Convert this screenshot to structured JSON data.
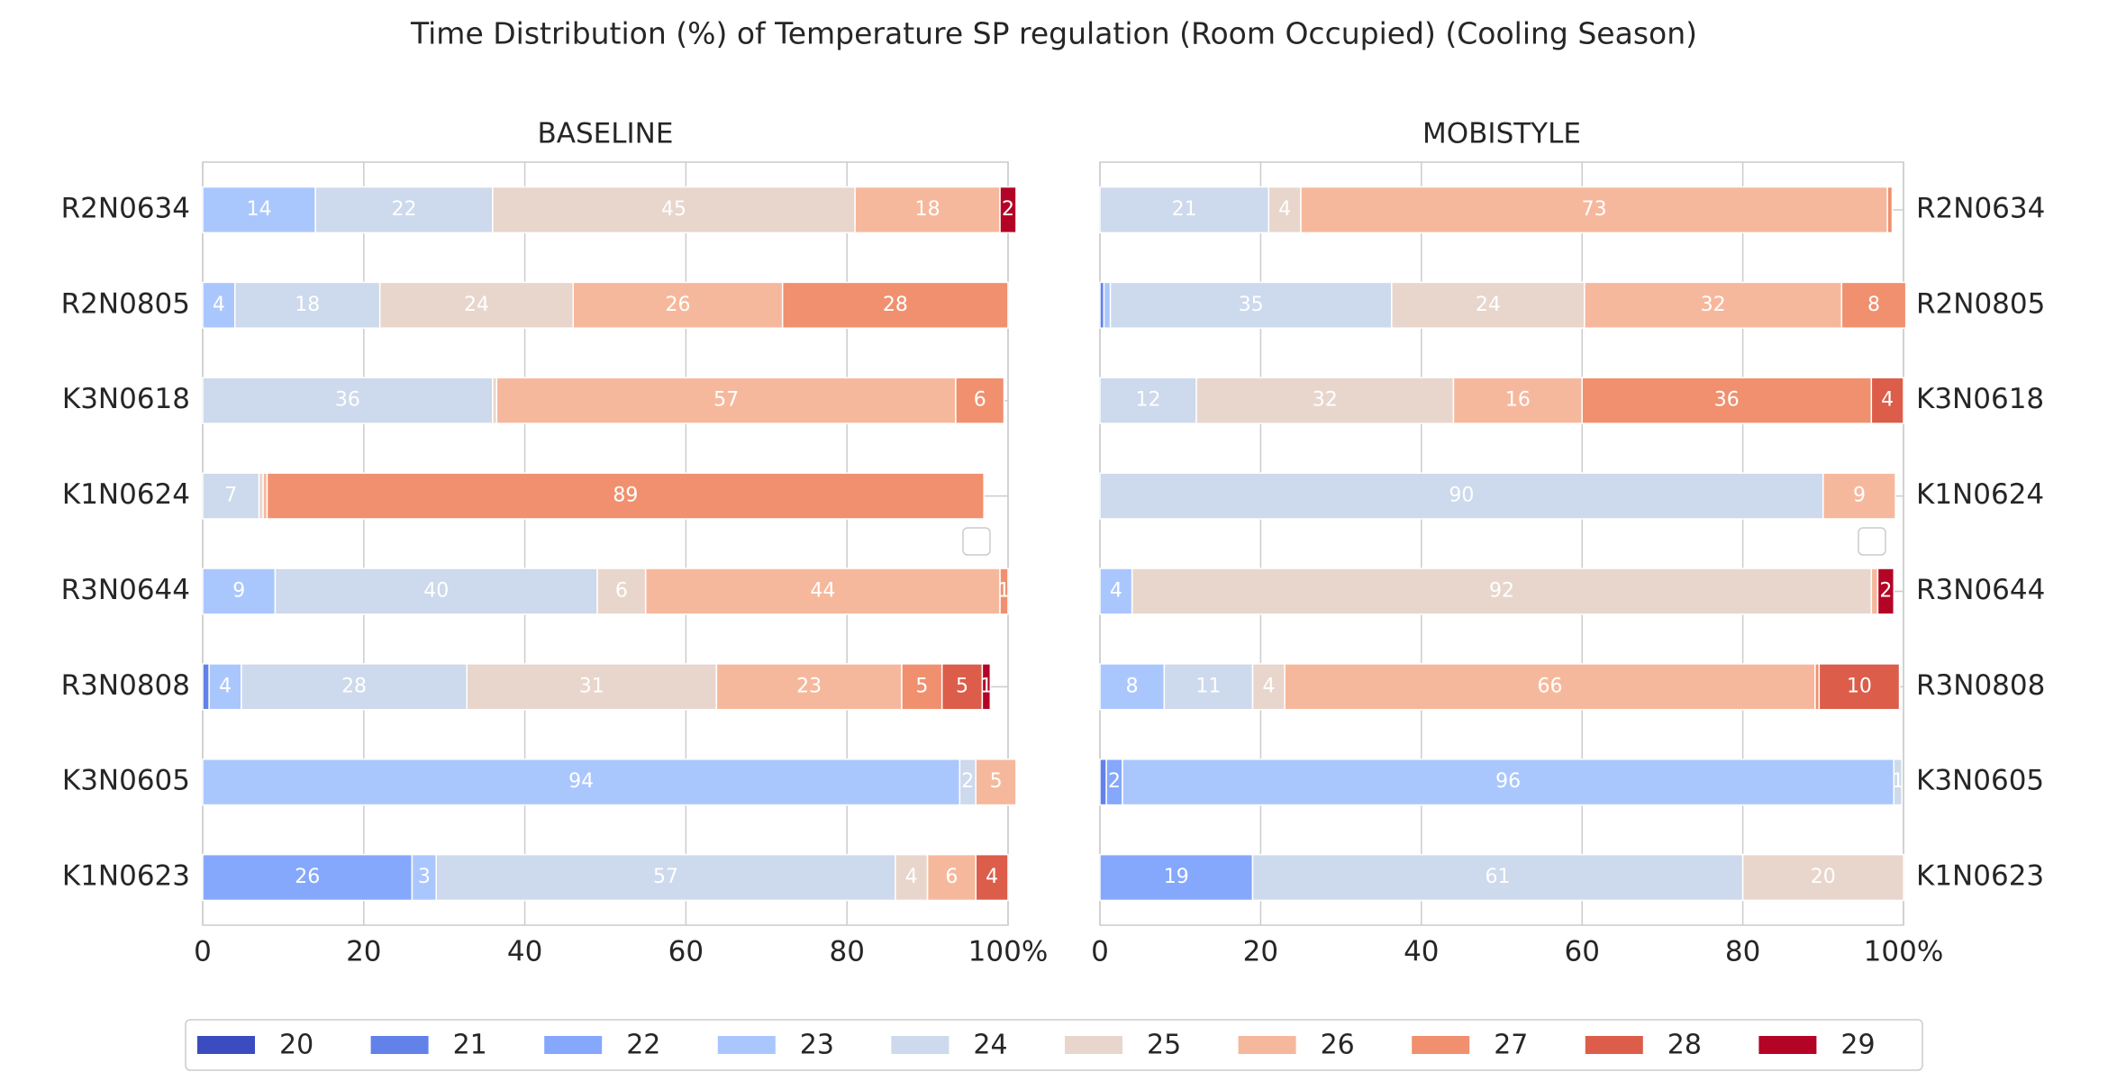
{
  "title": "Time Distribution (%) of Temperature SP regulation (Room Occupied) (Cooling Season)",
  "legend": "lower center",
  "chart_data": [
    {
      "type": "bar",
      "orientation": "horizontal",
      "stacked": true,
      "title": "BASELINE",
      "ytick_side": "left",
      "categories": [
        "R2N0634",
        "R2N0805",
        "K3N0618",
        "K1N0624",
        "R3N0644",
        "R3N0808",
        "K3N0605",
        "K1N0623"
      ],
      "xlim": [
        0,
        100
      ],
      "xticks": [
        0,
        20,
        40,
        60,
        80,
        {
          "value": 100,
          "label": "100%"
        }
      ],
      "grid": true,
      "series": [
        {
          "name": "20",
          "color": "#3b4cc0",
          "values": [
            0,
            0,
            0,
            0,
            0,
            0,
            0,
            0
          ]
        },
        {
          "name": "21",
          "color": "#6282ea",
          "values": [
            0,
            0,
            0,
            0,
            0,
            0.8,
            0,
            0
          ]
        },
        {
          "name": "22",
          "color": "#85a8fc",
          "values": [
            0,
            0,
            0,
            0,
            0,
            0,
            0,
            26
          ]
        },
        {
          "name": "23",
          "color": "#aac7fd",
          "values": [
            14,
            4,
            0,
            0,
            9,
            4,
            94,
            3
          ]
        },
        {
          "name": "24",
          "color": "#cdd9ec",
          "values": [
            22,
            18,
            36,
            7,
            40,
            28,
            2,
            57
          ]
        },
        {
          "name": "25",
          "color": "#e8d6cc",
          "values": [
            45,
            24,
            0.5,
            0.5,
            6,
            31,
            0,
            4
          ]
        },
        {
          "name": "26",
          "color": "#f6b89c",
          "values": [
            18,
            26,
            57,
            0.5,
            44,
            23,
            5,
            6
          ]
        },
        {
          "name": "27",
          "color": "#f0906f",
          "values": [
            0,
            28,
            6,
            89,
            1,
            5,
            0,
            0
          ]
        },
        {
          "name": "28",
          "color": "#dc5d4a",
          "values": [
            0,
            0,
            0,
            0,
            0,
            5,
            0,
            4
          ]
        },
        {
          "name": "29",
          "color": "#b40426",
          "values": [
            2,
            0,
            0,
            0,
            0,
            1,
            0,
            0
          ]
        }
      ]
    },
    {
      "type": "bar",
      "orientation": "horizontal",
      "stacked": true,
      "title": "MOBISTYLE",
      "ytick_side": "right",
      "categories": [
        "R2N0634",
        "R2N0805",
        "K3N0618",
        "K1N0624",
        "R3N0644",
        "R3N0808",
        "K3N0605",
        "K1N0623"
      ],
      "xlim": [
        0,
        100
      ],
      "xticks": [
        0,
        20,
        40,
        60,
        80,
        {
          "value": 100,
          "label": "100%"
        }
      ],
      "grid": true,
      "series": [
        {
          "name": "20",
          "color": "#3b4cc0",
          "values": [
            0,
            0,
            0,
            0,
            0,
            0,
            0,
            0
          ]
        },
        {
          "name": "21",
          "color": "#6282ea",
          "values": [
            0,
            0.5,
            0,
            0,
            0,
            0,
            0.8,
            0
          ]
        },
        {
          "name": "22",
          "color": "#85a8fc",
          "values": [
            0,
            0,
            0,
            0,
            0,
            0,
            2,
            19
          ]
        },
        {
          "name": "23",
          "color": "#aac7fd",
          "values": [
            0,
            0.8,
            0,
            0,
            4,
            8,
            96,
            0
          ]
        },
        {
          "name": "24",
          "color": "#cdd9ec",
          "values": [
            21,
            35,
            12,
            90,
            0,
            11,
            1,
            61
          ]
        },
        {
          "name": "25",
          "color": "#e8d6cc",
          "values": [
            4,
            24,
            32,
            0,
            92,
            4,
            0,
            20
          ]
        },
        {
          "name": "26",
          "color": "#f6b89c",
          "values": [
            73,
            32,
            16,
            9,
            0.8,
            66,
            0,
            0
          ]
        },
        {
          "name": "27",
          "color": "#f0906f",
          "values": [
            0.6,
            8,
            36,
            0,
            0,
            0.5,
            0,
            0
          ]
        },
        {
          "name": "28",
          "color": "#dc5d4a",
          "values": [
            0,
            0,
            4,
            0,
            0,
            10,
            0,
            0
          ]
        },
        {
          "name": "29",
          "color": "#b40426",
          "values": [
            0,
            0,
            0,
            0,
            2,
            0,
            0,
            0
          ]
        }
      ]
    }
  ]
}
